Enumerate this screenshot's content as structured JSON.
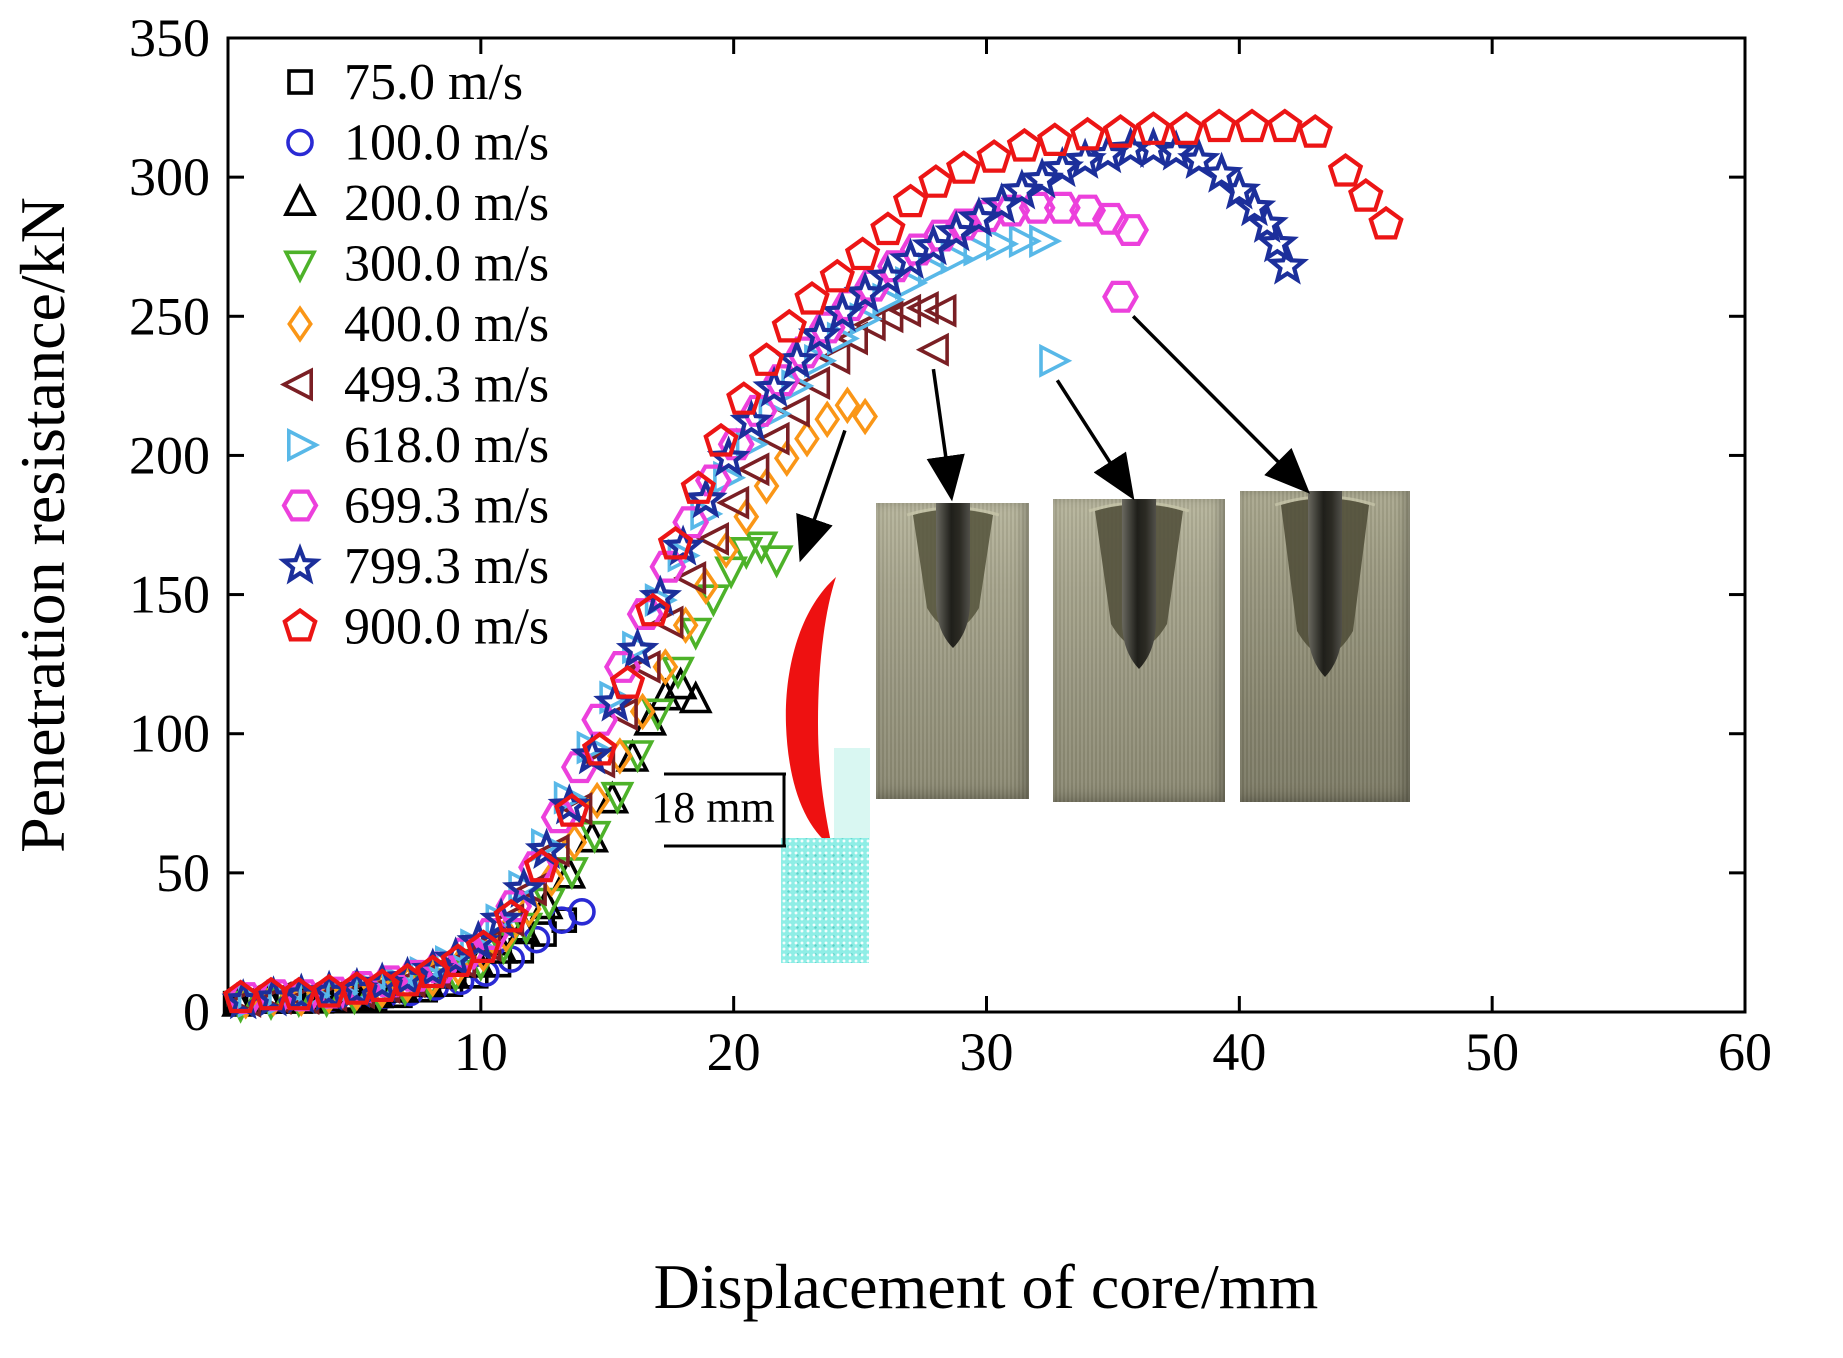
{
  "chart_data": {
    "type": "scatter",
    "title": "",
    "xlabel": "Displacement of core/mm",
    "ylabel": "Penetration resistance/kN",
    "xlim": [
      0,
      60
    ],
    "ylim": [
      0,
      350
    ],
    "xticks": [
      10,
      20,
      30,
      40,
      50,
      60
    ],
    "yticks": [
      0,
      50,
      100,
      150,
      200,
      250,
      300,
      350
    ],
    "grid": false,
    "legend_position": "upper-left-inside",
    "series": [
      {
        "name": "75.0 m/s",
        "marker": "square",
        "color": "#000000",
        "size": 11,
        "points": [
          [
            0.3,
            3
          ],
          [
            1.5,
            4
          ],
          [
            2.6,
            4
          ],
          [
            3.7,
            4
          ],
          [
            4.8,
            5
          ],
          [
            5.8,
            5
          ],
          [
            6.8,
            6
          ],
          [
            7.8,
            8
          ],
          [
            8.8,
            10
          ],
          [
            9.8,
            13
          ],
          [
            10.7,
            17
          ],
          [
            11.6,
            22
          ],
          [
            12.5,
            28
          ],
          [
            13.3,
            33
          ]
        ]
      },
      {
        "name": "100.0 m/s",
        "marker": "circle",
        "color": "#2a2ad4",
        "size": 12,
        "points": [
          [
            0.6,
            4
          ],
          [
            1.8,
            4
          ],
          [
            3,
            5
          ],
          [
            4.1,
            5
          ],
          [
            5.2,
            6
          ],
          [
            6.2,
            6
          ],
          [
            7.2,
            7
          ],
          [
            8.2,
            9
          ],
          [
            9.2,
            11
          ],
          [
            10.2,
            14
          ],
          [
            11.2,
            19
          ],
          [
            12.2,
            26
          ],
          [
            13.2,
            33
          ],
          [
            14,
            36
          ]
        ]
      },
      {
        "name": "200.0 m/s",
        "marker": "triangle-up",
        "color": "#000000",
        "size": 14,
        "points": [
          [
            0.4,
            3
          ],
          [
            1.6,
            4
          ],
          [
            2.7,
            4
          ],
          [
            3.8,
            5
          ],
          [
            4.9,
            5
          ],
          [
            5.9,
            6
          ],
          [
            6.9,
            8
          ],
          [
            7.9,
            10
          ],
          [
            8.9,
            13
          ],
          [
            9.9,
            17
          ],
          [
            10.8,
            22
          ],
          [
            11.7,
            29
          ],
          [
            12.6,
            38
          ],
          [
            13.5,
            49
          ],
          [
            14.4,
            62
          ],
          [
            15.2,
            76
          ],
          [
            16,
            91
          ],
          [
            16.7,
            104
          ],
          [
            17.3,
            113
          ],
          [
            17.9,
            117
          ],
          [
            18.5,
            112
          ]
        ]
      },
      {
        "name": "300.0 m/s",
        "marker": "triangle-down",
        "color": "#4db229",
        "size": 14,
        "points": [
          [
            0.5,
            3
          ],
          [
            1.7,
            4
          ],
          [
            2.8,
            5
          ],
          [
            3.9,
            5
          ],
          [
            5,
            6
          ],
          [
            6,
            7
          ],
          [
            7,
            9
          ],
          [
            8,
            11
          ],
          [
            9,
            14
          ],
          [
            10,
            18
          ],
          [
            10.9,
            24
          ],
          [
            11.8,
            31
          ],
          [
            12.7,
            40
          ],
          [
            13.6,
            51
          ],
          [
            14.5,
            64
          ],
          [
            15.4,
            78
          ],
          [
            16.2,
            93
          ],
          [
            17,
            108
          ],
          [
            17.8,
            123
          ],
          [
            18.5,
            137
          ],
          [
            19.2,
            149
          ],
          [
            19.9,
            159
          ],
          [
            20.5,
            166
          ],
          [
            21.1,
            168
          ],
          [
            21.7,
            163
          ]
        ]
      },
      {
        "name": "400.0 m/s",
        "marker": "diamond",
        "color": "#fa9617",
        "size": 13,
        "points": [
          [
            0.7,
            4
          ],
          [
            1.8,
            5
          ],
          [
            2.9,
            5
          ],
          [
            4,
            6
          ],
          [
            5.1,
            7
          ],
          [
            6.1,
            8
          ],
          [
            7.1,
            10
          ],
          [
            8.1,
            12
          ],
          [
            9.1,
            16
          ],
          [
            10.1,
            21
          ],
          [
            11,
            28
          ],
          [
            11.9,
            37
          ],
          [
            12.8,
            48
          ],
          [
            13.7,
            61
          ],
          [
            14.6,
            76
          ],
          [
            15.5,
            92
          ],
          [
            16.4,
            108
          ],
          [
            17.3,
            124
          ],
          [
            18.1,
            139
          ],
          [
            18.9,
            153
          ],
          [
            19.7,
            166
          ],
          [
            20.5,
            178
          ],
          [
            21.3,
            189
          ],
          [
            22.1,
            199
          ],
          [
            22.9,
            206
          ],
          [
            23.7,
            213
          ],
          [
            24.5,
            218
          ],
          [
            25.2,
            214
          ]
        ]
      },
      {
        "name": "499.3 m/s",
        "marker": "triangle-left",
        "color": "#7a1f24",
        "size": 14,
        "points": [
          [
            0.8,
            4
          ],
          [
            2,
            5
          ],
          [
            3.1,
            5
          ],
          [
            4.2,
            6
          ],
          [
            5.3,
            7
          ],
          [
            6.3,
            9
          ],
          [
            7.3,
            11
          ],
          [
            8.3,
            14
          ],
          [
            9.3,
            18
          ],
          [
            10.3,
            24
          ],
          [
            11.2,
            33
          ],
          [
            12.1,
            44
          ],
          [
            13,
            58
          ],
          [
            13.9,
            73
          ],
          [
            14.8,
            90
          ],
          [
            15.7,
            107
          ],
          [
            16.6,
            124
          ],
          [
            17.5,
            140
          ],
          [
            18.4,
            156
          ],
          [
            19.3,
            170
          ],
          [
            20.1,
            183
          ],
          [
            20.9,
            195
          ],
          [
            21.7,
            206
          ],
          [
            22.5,
            216
          ],
          [
            23.3,
            226
          ],
          [
            24.1,
            235
          ],
          [
            24.8,
            242
          ],
          [
            25.5,
            247
          ],
          [
            26.2,
            250
          ],
          [
            26.9,
            252
          ],
          [
            27.6,
            253
          ],
          [
            28.3,
            252
          ],
          [
            28,
            238
          ]
        ]
      },
      {
        "name": "618.0 m/s",
        "marker": "triangle-right",
        "color": "#58b8e8",
        "size": 14,
        "points": [
          [
            0.9,
            4
          ],
          [
            2.1,
            5
          ],
          [
            3.3,
            6
          ],
          [
            4.4,
            7
          ],
          [
            5.5,
            9
          ],
          [
            6.6,
            11
          ],
          [
            7.7,
            14
          ],
          [
            8.7,
            18
          ],
          [
            9.7,
            24
          ],
          [
            10.7,
            33
          ],
          [
            11.6,
            45
          ],
          [
            12.5,
            60
          ],
          [
            13.4,
            77
          ],
          [
            14.3,
            95
          ],
          [
            15.2,
            113
          ],
          [
            16.1,
            131
          ],
          [
            17,
            148
          ],
          [
            17.9,
            164
          ],
          [
            18.8,
            179
          ],
          [
            19.7,
            192
          ],
          [
            20.6,
            204
          ],
          [
            21.5,
            215
          ],
          [
            22.4,
            225
          ],
          [
            23.3,
            234
          ],
          [
            24.2,
            242
          ],
          [
            25.1,
            249
          ],
          [
            26,
            256
          ],
          [
            26.9,
            262
          ],
          [
            27.8,
            267
          ],
          [
            28.7,
            271
          ],
          [
            29.6,
            274
          ],
          [
            30.5,
            276
          ],
          [
            31.4,
            277
          ],
          [
            32.2,
            277
          ],
          [
            32.6,
            234
          ]
        ]
      },
      {
        "name": "699.3 m/s",
        "marker": "hexagon",
        "color": "#ec40dc",
        "size": 16,
        "points": [
          [
            0.7,
            5
          ],
          [
            1.9,
            6
          ],
          [
            3,
            6
          ],
          [
            4.2,
            7
          ],
          [
            5.3,
            9
          ],
          [
            6.4,
            11
          ],
          [
            7.4,
            13
          ],
          [
            8.4,
            16
          ],
          [
            9.4,
            21
          ],
          [
            10.4,
            28
          ],
          [
            11.3,
            38
          ],
          [
            12.2,
            52
          ],
          [
            13.1,
            70
          ],
          [
            13.9,
            88
          ],
          [
            14.7,
            105
          ],
          [
            15.6,
            124
          ],
          [
            16.5,
            143
          ],
          [
            17.4,
            160
          ],
          [
            18.3,
            176
          ],
          [
            19.2,
            191
          ],
          [
            20.1,
            204
          ],
          [
            21,
            216
          ],
          [
            21.9,
            227
          ],
          [
            22.8,
            237
          ],
          [
            23.7,
            246
          ],
          [
            24.6,
            254
          ],
          [
            25.5,
            261
          ],
          [
            26.4,
            268
          ],
          [
            27.3,
            274
          ],
          [
            28.2,
            279
          ],
          [
            29.1,
            283
          ],
          [
            30,
            286
          ],
          [
            31,
            288
          ],
          [
            32,
            289
          ],
          [
            33,
            289
          ],
          [
            34,
            288
          ],
          [
            34.9,
            285
          ],
          [
            35.7,
            281
          ],
          [
            35.3,
            257
          ]
        ]
      },
      {
        "name": "799.3 m/s",
        "marker": "star",
        "color": "#1c2f9b",
        "size": 17,
        "points": [
          [
            0.6,
            4
          ],
          [
            1.8,
            5
          ],
          [
            2.9,
            6
          ],
          [
            4,
            7
          ],
          [
            5.1,
            8
          ],
          [
            6.1,
            10
          ],
          [
            7.1,
            12
          ],
          [
            8.1,
            15
          ],
          [
            9,
            19
          ],
          [
            9.9,
            25
          ],
          [
            10.8,
            33
          ],
          [
            11.7,
            44
          ],
          [
            12.6,
            58
          ],
          [
            13.5,
            74
          ],
          [
            14.4,
            92
          ],
          [
            15.3,
            111
          ],
          [
            16.2,
            130
          ],
          [
            17.1,
            149
          ],
          [
            18,
            167
          ],
          [
            18.9,
            184
          ],
          [
            19.8,
            199
          ],
          [
            20.7,
            212
          ],
          [
            21.6,
            224
          ],
          [
            22.5,
            234
          ],
          [
            23.4,
            243
          ],
          [
            24.3,
            251
          ],
          [
            25.2,
            258
          ],
          [
            26.1,
            264
          ],
          [
            27,
            270
          ],
          [
            27.9,
            275
          ],
          [
            28.8,
            280
          ],
          [
            29.7,
            285
          ],
          [
            30.6,
            290
          ],
          [
            31.4,
            295
          ],
          [
            32.2,
            299
          ],
          [
            33,
            303
          ],
          [
            33.9,
            306
          ],
          [
            34.8,
            308
          ],
          [
            35.7,
            310
          ],
          [
            36.6,
            310
          ],
          [
            37.5,
            309
          ],
          [
            38.4,
            306
          ],
          [
            39.3,
            301
          ],
          [
            40,
            295
          ],
          [
            40.6,
            289
          ],
          [
            41.1,
            283
          ],
          [
            41.5,
            276
          ],
          [
            41.9,
            268
          ]
        ]
      },
      {
        "name": "900.0 m/s",
        "marker": "pentagon",
        "color": "#ec1515",
        "size": 16,
        "points": [
          [
            0.5,
            5
          ],
          [
            1.7,
            6
          ],
          [
            2.8,
            6
          ],
          [
            4,
            7
          ],
          [
            5.1,
            8
          ],
          [
            6.1,
            9
          ],
          [
            7.1,
            11
          ],
          [
            8.1,
            14
          ],
          [
            9.1,
            18
          ],
          [
            10.1,
            23
          ],
          [
            11.2,
            34
          ],
          [
            12.4,
            52
          ],
          [
            13.6,
            72
          ],
          [
            14.7,
            94
          ],
          [
            15.8,
            118
          ],
          [
            16.8,
            144
          ],
          [
            17.7,
            168
          ],
          [
            18.6,
            188
          ],
          [
            19.5,
            205
          ],
          [
            20.4,
            220
          ],
          [
            21.3,
            234
          ],
          [
            22.2,
            246
          ],
          [
            23.1,
            256
          ],
          [
            24.1,
            264
          ],
          [
            25.1,
            272
          ],
          [
            26.1,
            281
          ],
          [
            27,
            291
          ],
          [
            28,
            298
          ],
          [
            29.1,
            303
          ],
          [
            30.3,
            307
          ],
          [
            31.5,
            311
          ],
          [
            32.7,
            313
          ],
          [
            34,
            315
          ],
          [
            35.3,
            316
          ],
          [
            36.6,
            317
          ],
          [
            37.9,
            317
          ],
          [
            39.2,
            318
          ],
          [
            40.5,
            318
          ],
          [
            41.8,
            318
          ],
          [
            43,
            316
          ],
          [
            44.2,
            302
          ],
          [
            45,
            293
          ],
          [
            45.8,
            283
          ]
        ]
      }
    ],
    "callout_arrows": [
      {
        "from": [
          24.4,
          209
        ],
        "to": [
          22.7,
          164
        ]
      },
      {
        "from": [
          27.9,
          231
        ],
        "to": [
          28.6,
          186
        ]
      },
      {
        "from": [
          32.8,
          227
        ],
        "to": [
          35.7,
          186
        ]
      },
      {
        "from": [
          35.8,
          250
        ],
        "to": [
          42.6,
          188
        ]
      }
    ]
  },
  "annotations": {
    "dimension_label": "18 mm"
  }
}
